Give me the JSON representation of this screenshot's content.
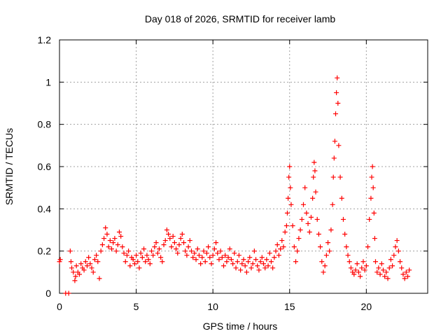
{
  "chart_data": {
    "type": "scatter",
    "title": "Day 018 of 2026, SRMTID for receiver lamb",
    "xlabel": "GPS time / hours",
    "ylabel": "SRMTID / TECUs",
    "xlim": [
      0,
      24
    ],
    "ylim": [
      0,
      1.2
    ],
    "x_ticks": [
      0,
      5,
      10,
      15,
      20
    ],
    "x_tick_labels": [
      "0",
      "5",
      "10",
      "15",
      "20"
    ],
    "y_ticks": [
      0,
      0.2,
      0.4,
      0.6,
      0.8,
      1,
      1.2
    ],
    "y_tick_labels": [
      "0",
      "0.2",
      "0.4",
      "0.6",
      "0.8",
      "1",
      "1.2"
    ],
    "grid": true,
    "marker": "plus",
    "series": [
      {
        "name": "SRMTID",
        "color": "#ff0000",
        "x": [
          0.0,
          0.05,
          0.4,
          0.6,
          0.7,
          0.75,
          0.8,
          0.9,
          1.0,
          1.05,
          1.1,
          1.2,
          1.3,
          1.4,
          1.5,
          1.6,
          1.7,
          1.8,
          1.9,
          2.0,
          2.1,
          2.2,
          2.3,
          2.4,
          2.5,
          2.6,
          2.7,
          2.8,
          2.9,
          3.0,
          3.1,
          3.2,
          3.3,
          3.4,
          3.5,
          3.6,
          3.7,
          3.8,
          3.9,
          4.0,
          4.1,
          4.2,
          4.3,
          4.4,
          4.5,
          4.6,
          4.7,
          4.8,
          4.9,
          5.0,
          5.1,
          5.2,
          5.3,
          5.4,
          5.5,
          5.6,
          5.7,
          5.8,
          5.9,
          6.0,
          6.1,
          6.2,
          6.3,
          6.4,
          6.5,
          6.6,
          6.7,
          6.8,
          6.9,
          7.0,
          7.1,
          7.2,
          7.3,
          7.4,
          7.5,
          7.6,
          7.7,
          7.8,
          7.9,
          8.0,
          8.1,
          8.2,
          8.3,
          8.4,
          8.5,
          8.6,
          8.7,
          8.8,
          8.9,
          9.0,
          9.1,
          9.2,
          9.3,
          9.4,
          9.5,
          9.6,
          9.7,
          9.8,
          9.9,
          10.0,
          10.1,
          10.2,
          10.3,
          10.4,
          10.5,
          10.6,
          10.7,
          10.8,
          10.9,
          11.0,
          11.1,
          11.2,
          11.3,
          11.4,
          11.5,
          11.6,
          11.7,
          11.8,
          11.9,
          12.0,
          12.1,
          12.2,
          12.3,
          12.4,
          12.5,
          12.6,
          12.7,
          12.8,
          12.9,
          13.0,
          13.1,
          13.2,
          13.3,
          13.4,
          13.5,
          13.6,
          13.7,
          13.8,
          13.9,
          14.0,
          14.1,
          14.2,
          14.3,
          14.4,
          14.5,
          14.6,
          14.7,
          14.8,
          14.85,
          14.9,
          14.95,
          15.0,
          15.05,
          15.1,
          15.2,
          15.3,
          15.4,
          15.5,
          15.6,
          15.7,
          15.8,
          15.9,
          16.0,
          16.1,
          16.2,
          16.3,
          16.4,
          16.5,
          16.55,
          16.6,
          16.65,
          16.7,
          16.8,
          16.9,
          17.0,
          17.1,
          17.2,
          17.3,
          17.4,
          17.5,
          17.6,
          17.7,
          17.8,
          17.85,
          17.9,
          17.95,
          18.0,
          18.05,
          18.1,
          18.15,
          18.2,
          18.3,
          18.4,
          18.5,
          18.6,
          18.7,
          18.8,
          18.9,
          19.0,
          19.1,
          19.2,
          19.3,
          19.4,
          19.5,
          19.6,
          19.7,
          19.8,
          19.9,
          20.0,
          20.1,
          20.2,
          20.3,
          20.35,
          20.4,
          20.45,
          20.5,
          20.55,
          20.6,
          20.7,
          20.8,
          20.9,
          21.0,
          21.1,
          21.2,
          21.3,
          21.4,
          21.5,
          21.6,
          21.7,
          21.8,
          21.9,
          22.0,
          22.1,
          22.2,
          22.3,
          22.4,
          22.5,
          22.6,
          22.7,
          22.8
        ],
        "values": [
          0.15,
          0.16,
          0.0,
          0.0,
          0.2,
          0.15,
          0.12,
          0.1,
          0.06,
          0.08,
          0.13,
          0.1,
          0.09,
          0.14,
          0.12,
          0.11,
          0.15,
          0.13,
          0.17,
          0.14,
          0.12,
          0.1,
          0.16,
          0.18,
          0.15,
          0.07,
          0.2,
          0.23,
          0.26,
          0.31,
          0.28,
          0.22,
          0.25,
          0.21,
          0.24,
          0.26,
          0.2,
          0.23,
          0.29,
          0.27,
          0.22,
          0.19,
          0.15,
          0.18,
          0.2,
          0.13,
          0.17,
          0.16,
          0.14,
          0.18,
          0.15,
          0.12,
          0.19,
          0.17,
          0.21,
          0.15,
          0.18,
          0.16,
          0.14,
          0.2,
          0.18,
          0.22,
          0.24,
          0.19,
          0.21,
          0.17,
          0.15,
          0.23,
          0.25,
          0.3,
          0.28,
          0.26,
          0.22,
          0.27,
          0.24,
          0.21,
          0.19,
          0.23,
          0.26,
          0.28,
          0.24,
          0.2,
          0.18,
          0.22,
          0.25,
          0.2,
          0.17,
          0.19,
          0.16,
          0.21,
          0.18,
          0.14,
          0.17,
          0.2,
          0.15,
          0.19,
          0.22,
          0.17,
          0.14,
          0.18,
          0.21,
          0.24,
          0.19,
          0.16,
          0.2,
          0.17,
          0.13,
          0.18,
          0.15,
          0.17,
          0.21,
          0.16,
          0.14,
          0.19,
          0.12,
          0.15,
          0.18,
          0.11,
          0.14,
          0.16,
          0.13,
          0.1,
          0.15,
          0.17,
          0.12,
          0.14,
          0.2,
          0.16,
          0.13,
          0.11,
          0.15,
          0.17,
          0.14,
          0.12,
          0.16,
          0.13,
          0.19,
          0.15,
          0.12,
          0.17,
          0.2,
          0.23,
          0.18,
          0.21,
          0.25,
          0.22,
          0.29,
          0.32,
          0.38,
          0.45,
          0.55,
          0.6,
          0.5,
          0.42,
          0.32,
          0.22,
          0.15,
          0.2,
          0.26,
          0.3,
          0.35,
          0.42,
          0.5,
          0.38,
          0.33,
          0.29,
          0.36,
          0.45,
          0.55,
          0.62,
          0.58,
          0.48,
          0.35,
          0.28,
          0.22,
          0.15,
          0.1,
          0.13,
          0.18,
          0.24,
          0.2,
          0.3,
          0.42,
          0.55,
          0.64,
          0.72,
          0.85,
          0.95,
          1.02,
          0.9,
          0.7,
          0.55,
          0.45,
          0.35,
          0.28,
          0.22,
          0.18,
          0.15,
          0.12,
          0.1,
          0.09,
          0.11,
          0.14,
          0.1,
          0.08,
          0.12,
          0.15,
          0.11,
          0.13,
          0.22,
          0.35,
          0.45,
          0.55,
          0.6,
          0.5,
          0.38,
          0.26,
          0.15,
          0.1,
          0.12,
          0.09,
          0.14,
          0.11,
          0.08,
          0.1,
          0.07,
          0.12,
          0.16,
          0.13,
          0.18,
          0.22,
          0.25,
          0.2,
          0.15,
          0.12,
          0.09,
          0.07,
          0.1,
          0.08,
          0.11
        ]
      }
    ]
  }
}
